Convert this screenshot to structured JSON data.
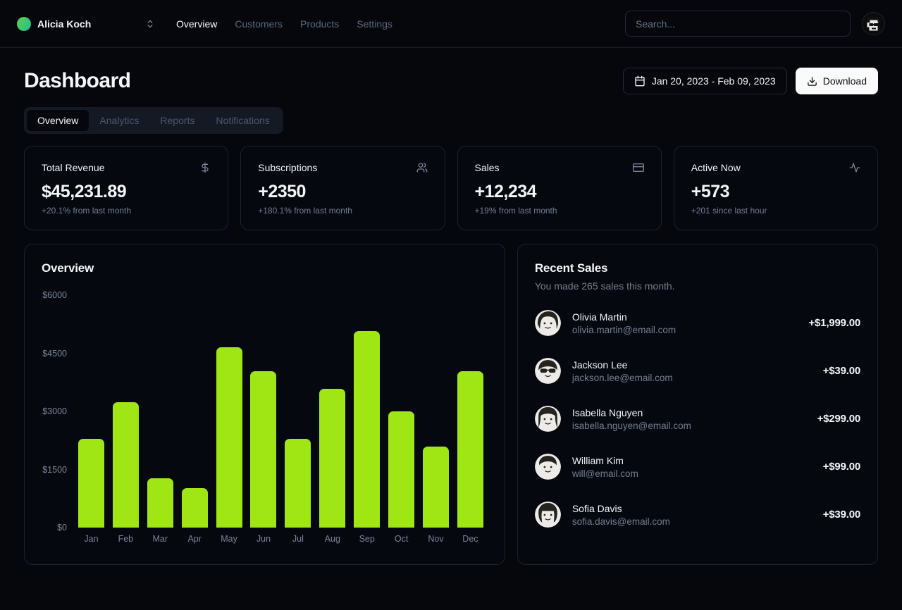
{
  "nav": {
    "team": "Alicia Koch",
    "links": [
      {
        "label": "Overview",
        "active": true
      },
      {
        "label": "Customers",
        "active": false
      },
      {
        "label": "Products",
        "active": false
      },
      {
        "label": "Settings",
        "active": false
      }
    ],
    "search_placeholder": "Search..."
  },
  "header": {
    "title": "Dashboard",
    "date_range": "Jan 20, 2023 - Feb 09, 2023",
    "download_label": "Download"
  },
  "tabs": [
    {
      "label": "Overview",
      "active": true
    },
    {
      "label": "Analytics",
      "active": false
    },
    {
      "label": "Reports",
      "active": false
    },
    {
      "label": "Notifications",
      "active": false
    }
  ],
  "stats": [
    {
      "label": "Total Revenue",
      "icon": "dollar-icon",
      "value": "$45,231.89",
      "delta": "+20.1% from last month"
    },
    {
      "label": "Subscriptions",
      "icon": "users-icon",
      "value": "+2350",
      "delta": "+180.1% from last month"
    },
    {
      "label": "Sales",
      "icon": "credit-card-icon",
      "value": "+12,234",
      "delta": "+19% from last month"
    },
    {
      "label": "Active Now",
      "icon": "activity-icon",
      "value": "+573",
      "delta": "+201 since last hour"
    }
  ],
  "chart_data": {
    "type": "bar",
    "title": "Overview",
    "categories": [
      "Jan",
      "Feb",
      "Mar",
      "Apr",
      "May",
      "Jun",
      "Jul",
      "Aug",
      "Sep",
      "Oct",
      "Nov",
      "Dec"
    ],
    "values": [
      2290,
      3240,
      1280,
      1020,
      4650,
      4040,
      2290,
      3590,
      5080,
      3000,
      2090,
      4040
    ],
    "y_ticks": [
      "$6000",
      "$4500",
      "$3000",
      "$1500",
      "$0"
    ],
    "ylim": [
      0,
      6000
    ],
    "xlabel": "",
    "ylabel": "",
    "grid": false,
    "legend": false,
    "bar_color": "#a0e614"
  },
  "recent_sales": {
    "title": "Recent Sales",
    "subtitle": "You made 265 sales this month.",
    "items": [
      {
        "name": "Olivia Martin",
        "email": "olivia.martin@email.com",
        "amount": "+$1,999.00",
        "avatar": "olivia"
      },
      {
        "name": "Jackson Lee",
        "email": "jackson.lee@email.com",
        "amount": "+$39.00",
        "avatar": "jackson"
      },
      {
        "name": "Isabella Nguyen",
        "email": "isabella.nguyen@email.com",
        "amount": "+$299.00",
        "avatar": "isabella"
      },
      {
        "name": "William Kim",
        "email": "will@email.com",
        "amount": "+$99.00",
        "avatar": "william"
      },
      {
        "name": "Sofia Davis",
        "email": "sofia.davis@email.com",
        "amount": "+$39.00",
        "avatar": "sofia"
      }
    ]
  },
  "colors": {
    "background": "#05070c",
    "card_border": "#1c2231",
    "accent_bar": "#a0e614",
    "muted_text": "#747e91",
    "download_button_bg": "#fafafa"
  }
}
